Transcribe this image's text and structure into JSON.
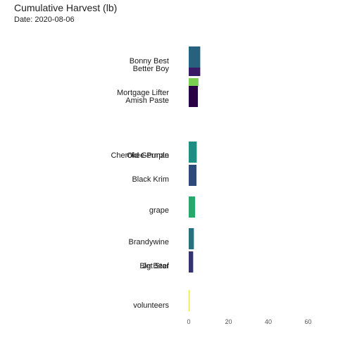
{
  "chart_data": {
    "type": "bar",
    "orientation": "horizontal",
    "stacked": true,
    "title": "Cumulative Harvest (lb)",
    "subtitle": "Date: 2020-08-06",
    "xlabel": "",
    "ylabel": "",
    "xlim": [
      0,
      70
    ],
    "x_ticks": [
      "0",
      "20",
      "40",
      "60"
    ],
    "x_tick_values": [
      0,
      20,
      40,
      60
    ],
    "grid": false,
    "legend": "none",
    "bars": [
      {
        "label": "Bonny Best",
        "value": 5.8,
        "color": "#26617e"
      },
      {
        "label": "Better Boy",
        "value": 5.8,
        "color": "#3a1a67"
      },
      {
        "label": "Mortgage Lifter",
        "value": 4.9,
        "color": "#7ad151"
      },
      {
        "label": "Amish Paste",
        "value": 4.6,
        "color": "#2b0146"
      },
      {
        "label": "Old German",
        "value": 4.0,
        "color": "#1f8f83"
      },
      {
        "label": "Cherokee Purple",
        "value": 4.0,
        "color": "#1f8f83"
      },
      {
        "label": "Black Krim",
        "value": 3.9,
        "color": "#2c4b7a"
      },
      {
        "label": "grape",
        "value": 3.2,
        "color": "#27a96b"
      },
      {
        "label": "Brandywine",
        "value": 2.6,
        "color": "#25717f"
      },
      {
        "label": "Big Beef",
        "value": 2.2,
        "color": "#35346f"
      },
      {
        "label": "Jet Star",
        "value": 2.2,
        "color": "#35346f"
      },
      {
        "label": "volunteers",
        "value": 0.3,
        "color": "#dfe02a"
      }
    ]
  }
}
